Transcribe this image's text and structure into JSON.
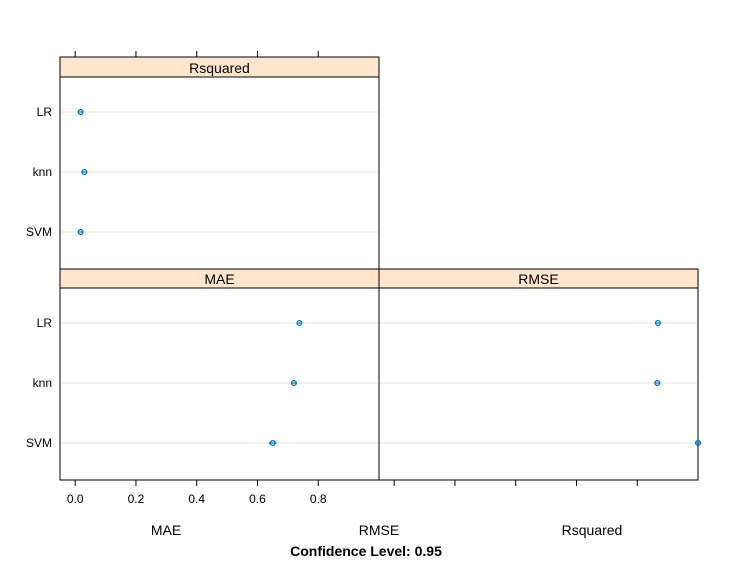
{
  "chart_data": {
    "type": "scatter",
    "layout_order": [
      "Rsquared",
      "MAE",
      "RMSE"
    ],
    "panels": [
      {
        "name": "Rsquared",
        "categories": [
          "LR",
          "knn",
          "SVM"
        ],
        "values": [
          0.018,
          0.03,
          0.018
        ],
        "lower": [
          0.012,
          0.023,
          0.012
        ],
        "upper": [
          0.024,
          0.037,
          0.024
        ]
      },
      {
        "name": "MAE",
        "categories": [
          "LR",
          "knn",
          "SVM"
        ],
        "values": [
          0.738,
          0.72,
          0.65
        ],
        "lower": [
          0.733,
          0.711,
          0.637
        ],
        "upper": [
          0.743,
          0.729,
          0.663
        ]
      },
      {
        "name": "RMSE",
        "categories": [
          "LR",
          "knn",
          "SVM"
        ],
        "values": [
          0.868,
          0.866,
          1.0
        ],
        "lower": [
          0.862,
          0.86,
          0.99
        ],
        "upper": [
          0.874,
          0.872,
          1.01
        ]
      }
    ],
    "xlim": [
      -0.05,
      1.0
    ],
    "xticks": [
      0.0,
      0.2,
      0.4,
      0.6,
      0.8
    ],
    "xtick_labels": [
      "0.0",
      "0.2",
      "0.4",
      "0.6",
      "0.8"
    ],
    "grid": true,
    "point_color": "#0072BD",
    "strip_color": "#FFE5CC",
    "bottom_labels": [
      "MAE",
      "RMSE",
      "Rsquared"
    ],
    "footer": "Confidence Level: 0.95"
  }
}
